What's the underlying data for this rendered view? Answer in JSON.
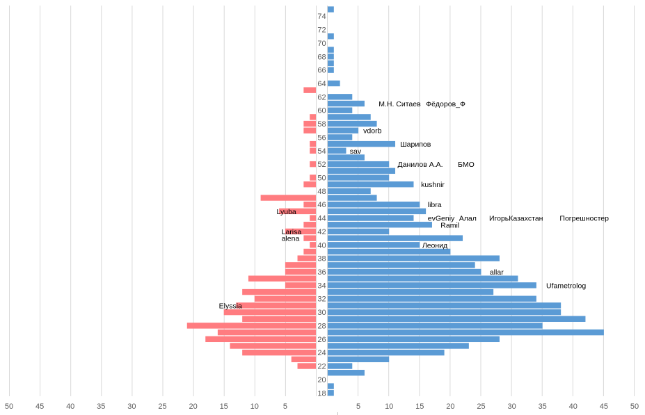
{
  "chart_data": {
    "type": "bar",
    "orientation": "horizontal",
    "subtype": "population-pyramid",
    "title": "",
    "xlabel": "",
    "ylabel": "",
    "xlim": [
      0,
      50
    ],
    "x_ticks": [
      5,
      10,
      15,
      20,
      25,
      30,
      35,
      40,
      45,
      50
    ],
    "grid": true,
    "categories": [
      75,
      74,
      73,
      72,
      71,
      70,
      69,
      68,
      67,
      66,
      65,
      64,
      63,
      62,
      61,
      60,
      59,
      58,
      57,
      56,
      55,
      54,
      53,
      52,
      51,
      50,
      49,
      48,
      47,
      46,
      45,
      44,
      43,
      42,
      41,
      40,
      39,
      38,
      37,
      36,
      35,
      34,
      33,
      32,
      31,
      30,
      29,
      28,
      27,
      26,
      25,
      24,
      23,
      22,
      21,
      20,
      19,
      18
    ],
    "category_labels_shown": [
      74,
      72,
      70,
      68,
      66,
      64,
      62,
      60,
      58,
      56,
      54,
      52,
      50,
      48,
      46,
      44,
      42,
      40,
      38,
      36,
      34,
      32,
      30,
      28,
      26,
      24,
      22,
      20,
      18
    ],
    "series": [
      {
        "name": "left",
        "side": "left",
        "color": "#ff7c80",
        "values": [
          0,
          0,
          0,
          0,
          0,
          0,
          0,
          0,
          0,
          0,
          0,
          0,
          2,
          0,
          0,
          0,
          1,
          2,
          2,
          0,
          1,
          1,
          0,
          1,
          0,
          1,
          2,
          0,
          9,
          2,
          6,
          1,
          2,
          5,
          2,
          1,
          2,
          3,
          5,
          5,
          11,
          5,
          12,
          10,
          13,
          15,
          12,
          21,
          16,
          18,
          14,
          12,
          4,
          3,
          0,
          0,
          0,
          0
        ]
      },
      {
        "name": "right",
        "side": "right",
        "color": "#5b9bd5",
        "values": [
          1,
          0,
          0,
          0,
          1,
          0,
          1,
          1,
          1,
          1,
          0,
          2,
          0,
          4,
          6,
          4,
          7,
          8,
          5,
          4,
          11,
          3,
          6,
          10,
          11,
          10,
          14,
          7,
          8,
          15,
          16,
          14,
          17,
          10,
          22,
          15,
          20,
          28,
          24,
          25,
          31,
          34,
          27,
          34,
          38,
          38,
          42,
          35,
          45,
          28,
          23,
          19,
          10,
          4,
          6,
          0,
          1,
          1
        ]
      }
    ],
    "annotations": [
      {
        "text": "М.Н. Ситаев",
        "side": "right",
        "age": 61,
        "at_value": 8.3
      },
      {
        "text": "Фёдоров_Ф",
        "side": "right",
        "age": 61,
        "at_value": 16
      },
      {
        "text": "vdorb",
        "side": "right",
        "age": 57,
        "at_value": 5.8
      },
      {
        "text": "Шарипов",
        "side": "right",
        "age": 55,
        "at_value": 11.8
      },
      {
        "text": "sav",
        "side": "right",
        "age": 54,
        "at_value": 3.6
      },
      {
        "text": "Данилов А.А.",
        "side": "right",
        "age": 52,
        "at_value": 11.4
      },
      {
        "text": "БМО",
        "side": "right",
        "age": 52,
        "at_value": 21.2
      },
      {
        "text": "kushnir",
        "side": "right",
        "age": 49,
        "at_value": 15.2
      },
      {
        "text": "libra",
        "side": "right",
        "age": 46,
        "at_value": 16.3
      },
      {
        "text": "evGeniy",
        "side": "right",
        "age": 44,
        "at_value": 16.3
      },
      {
        "text": "Алал",
        "side": "right",
        "age": 44,
        "at_value": 21.4
      },
      {
        "text": "ИгорьКазахстан",
        "side": "right",
        "age": 44,
        "at_value": 26.3
      },
      {
        "text": "Погрешностер",
        "side": "right",
        "age": 44,
        "at_value": 37.8
      },
      {
        "text": "Ramil",
        "side": "right",
        "age": 43,
        "at_value": 18.4
      },
      {
        "text": "Леонид",
        "side": "right",
        "age": 40,
        "at_value": 15.4
      },
      {
        "text": "allar",
        "side": "right",
        "age": 36,
        "at_value": 26.4
      },
      {
        "text": "Ufametrolog",
        "side": "right",
        "age": 34,
        "at_value": 35.6
      },
      {
        "text": "Lyuba",
        "side": "left",
        "age": 45,
        "at_value": 6.4
      },
      {
        "text": "Larisa",
        "side": "left",
        "age": 42,
        "at_value": 5.6
      },
      {
        "text": "alena",
        "side": "left",
        "age": 41,
        "at_value": 5.6
      },
      {
        "text": "Elyssia",
        "side": "left",
        "age": 31,
        "at_value": 15.8
      }
    ]
  }
}
